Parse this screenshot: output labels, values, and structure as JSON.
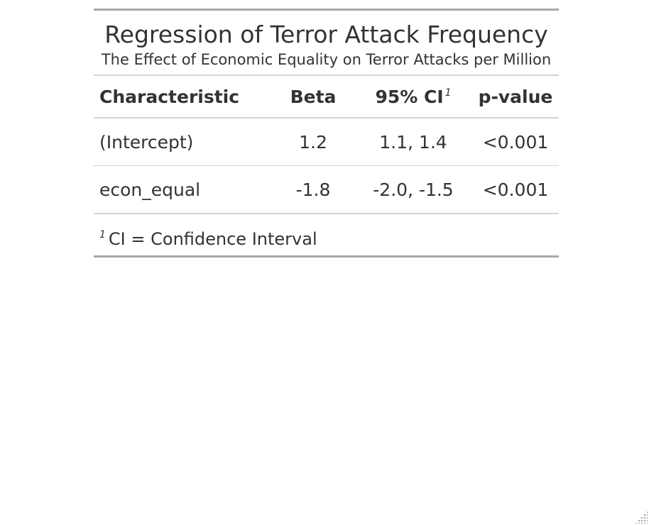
{
  "table": {
    "title": "Regression of Terror Attack Frequency",
    "subtitle": "The Effect of Economic Equality on Terror Attacks per Million",
    "columns": {
      "characteristic": "Characteristic",
      "beta": "Beta",
      "ci": "95% CI",
      "ci_footnote_mark": "1",
      "p_value": "p-value"
    },
    "rows": [
      {
        "characteristic": "(Intercept)",
        "beta": "1.2",
        "ci": "1.1, 1.4",
        "p_value": "<0.001"
      },
      {
        "characteristic": "econ_equal",
        "beta": "-1.8",
        "ci": "-2.0, -1.5",
        "p_value": "<0.001"
      }
    ],
    "footnote": {
      "mark": "1",
      "text": "CI = Confidence Interval"
    }
  },
  "colors": {
    "text": "#333333",
    "rule_heavy": "#a8a8a8",
    "rule_light": "#d3d3d3"
  },
  "icons": {
    "resize_grip": "resize-grip-icon"
  }
}
